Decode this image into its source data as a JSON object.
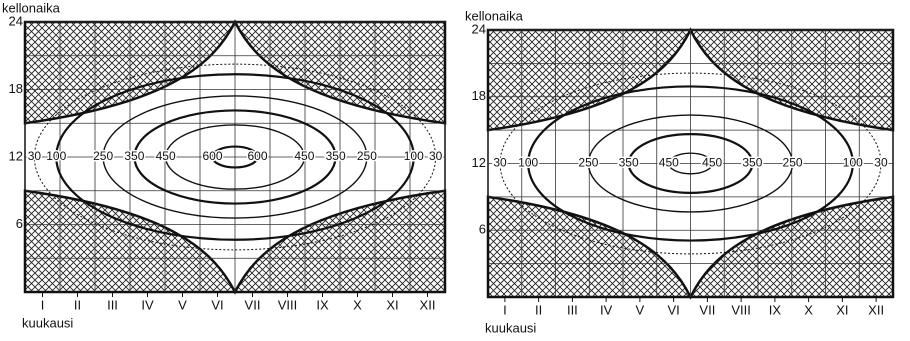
{
  "chart_data": [
    {
      "type": "contour",
      "y_label": "kellonaika",
      "x_label": "kuukausi",
      "categories": [
        "I",
        "II",
        "III",
        "IV",
        "V",
        "VI",
        "VII",
        "VIII",
        "IX",
        "X",
        "XI",
        "XII"
      ],
      "ylim": [
        0,
        24
      ],
      "yticks": [
        6,
        12,
        18,
        24
      ],
      "levels": [
        30,
        100,
        250,
        350,
        450,
        600
      ]
    },
    {
      "type": "contour",
      "y_label": "kellonaika",
      "x_label": "kuukausi",
      "categories": [
        "I",
        "II",
        "III",
        "IV",
        "V",
        "VI",
        "VII",
        "VIII",
        "IX",
        "X",
        "XI",
        "XII"
      ],
      "ylim": [
        0,
        24
      ],
      "yticks": [
        6,
        12,
        18,
        24
      ],
      "levels": [
        30,
        100,
        250,
        350,
        450
      ]
    }
  ]
}
